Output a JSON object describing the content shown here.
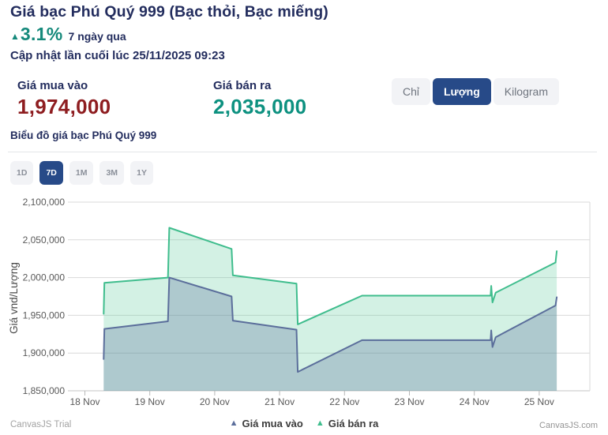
{
  "header": {
    "title": "Giá bạc Phú Quý 999 (Bạc thỏi, Bạc miếng)",
    "change_arrow": "▲",
    "change_percent": "3.1%",
    "change_period": "7 ngày qua",
    "last_updated": "Cập nhật lần cuối lúc 25/11/2025 09:23"
  },
  "prices": {
    "buy_label": "Giá mua vào",
    "buy_value": "1,974,000",
    "sell_label": "Giá bán ra",
    "sell_value": "2,035,000"
  },
  "unit_toggle": {
    "options": [
      {
        "label": "Chỉ",
        "active": false
      },
      {
        "label": "Lượng",
        "active": true
      },
      {
        "label": "Kilogram",
        "active": false
      }
    ]
  },
  "chart_section": {
    "title": "Biểu đồ giá bạc Phú Quý 999"
  },
  "range_buttons": [
    {
      "label": "1D",
      "active": false
    },
    {
      "label": "7D",
      "active": true
    },
    {
      "label": "1M",
      "active": false
    },
    {
      "label": "3M",
      "active": false
    },
    {
      "label": "1Y",
      "active": false
    }
  ],
  "watermarks": {
    "bottom_left": "CanvasJS Trial",
    "bottom_right": "CanvasJS.com"
  },
  "colors": {
    "accent_navy": "#232d5e",
    "teal": "#15897b",
    "buy_red": "#8e1d20",
    "sell_teal": "#0d9180",
    "button_navy": "#274a88",
    "gridline": "#d9d9d9",
    "axis_text": "#595959"
  },
  "chart_data": {
    "type": "area",
    "title": "",
    "xlabel": "",
    "ylabel": "Giá vnd/Lượng",
    "x_categories": [
      "18 Nov",
      "19 Nov",
      "20 Nov",
      "21 Nov",
      "22 Nov",
      "23 Nov",
      "24 Nov",
      "25 Nov"
    ],
    "x_unit": "days from 18 Nov 00:00",
    "ylim": [
      1850000,
      2100000
    ],
    "ytick_step": 50000,
    "grid": "horizontal",
    "legend_position": "bottom",
    "series": [
      {
        "name": "Giá mua vào",
        "color": "#5b6e9b",
        "fill": "rgba(91,110,155,0.30)",
        "points": [
          [
            0.29,
            1892000
          ],
          [
            0.3,
            1932000
          ],
          [
            1.28,
            1942000
          ],
          [
            1.3,
            2000000
          ],
          [
            2.26,
            1975000
          ],
          [
            2.28,
            1943000
          ],
          [
            3.26,
            1931000
          ],
          [
            3.28,
            1875000
          ],
          [
            4.27,
            1917000
          ],
          [
            6.25,
            1917000
          ],
          [
            6.26,
            1930000
          ],
          [
            6.28,
            1908000
          ],
          [
            6.33,
            1921000
          ],
          [
            7.25,
            1963000
          ],
          [
            7.27,
            1974000
          ]
        ]
      },
      {
        "name": "Giá bán ra",
        "color": "#3fbd8d",
        "fill": "rgba(98,205,158,0.28)",
        "points": [
          [
            0.29,
            1952000
          ],
          [
            0.3,
            1993000
          ],
          [
            1.28,
            2000000
          ],
          [
            1.3,
            2066000
          ],
          [
            2.26,
            2038000
          ],
          [
            2.28,
            2003000
          ],
          [
            3.26,
            1992000
          ],
          [
            3.28,
            1938000
          ],
          [
            4.27,
            1976000
          ],
          [
            6.25,
            1976000
          ],
          [
            6.26,
            1989000
          ],
          [
            6.28,
            1967000
          ],
          [
            6.33,
            1980000
          ],
          [
            7.25,
            2020000
          ],
          [
            7.27,
            2035000
          ]
        ]
      }
    ]
  }
}
